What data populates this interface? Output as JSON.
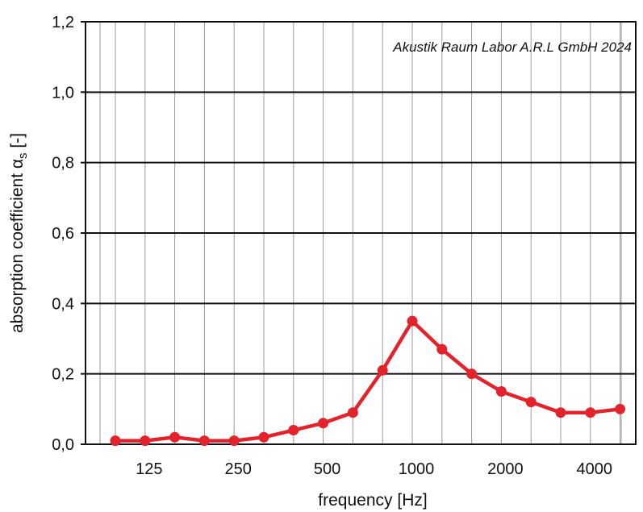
{
  "chart_data": {
    "type": "line",
    "title": "",
    "annotation": "Akustik Raum Labor A.R.L GmbH 2024",
    "xlabel": "frequency [Hz]",
    "ylabel_main": "absorption coefficient α",
    "ylabel_sub": "s",
    "ylabel_suffix": " [-]",
    "x_scale": "log (third-octave bands)",
    "x_tick_labels": [
      "125",
      "250",
      "500",
      "1000",
      "2000",
      "4000"
    ],
    "y_tick_labels": [
      "0,0",
      "0,2",
      "0,4",
      "0,6",
      "0,8",
      "1,0",
      "1,2"
    ],
    "ylim": [
      0,
      1.2
    ],
    "grid": true,
    "x": [
      100,
      125,
      160,
      200,
      250,
      315,
      400,
      500,
      630,
      800,
      1000,
      1250,
      1600,
      2000,
      2500,
      3150,
      4000,
      5000
    ],
    "series": [
      {
        "color": "#e2232b",
        "values": [
          0.01,
          0.01,
          0.02,
          0.01,
          0.01,
          0.02,
          0.04,
          0.06,
          0.09,
          0.21,
          0.35,
          0.27,
          0.2,
          0.15,
          0.12,
          0.09,
          0.09,
          0.1
        ]
      }
    ]
  }
}
